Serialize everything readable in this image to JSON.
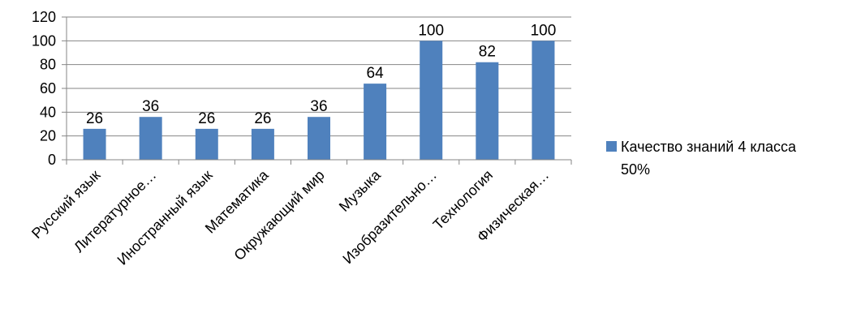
{
  "chart_data": {
    "type": "bar",
    "categories": [
      "Русский язык",
      "Литературное…",
      "Иностранный язык",
      "Математика",
      "Окружающий мир",
      "Музыка",
      "Изобразительно…",
      "Технология",
      "Физическая…"
    ],
    "series": [
      {
        "name": "Качество знаний 4 класса 50%",
        "values": [
          26,
          36,
          26,
          26,
          36,
          64,
          100,
          82,
          100
        ]
      }
    ],
    "data_labels": [
      "26",
      "36",
      "26",
      "26",
      "36",
      "64",
      "100",
      "82",
      "100"
    ],
    "y_ticks": [
      "0",
      "20",
      "40",
      "60",
      "80",
      "100",
      "120"
    ],
    "ylim": [
      0,
      120
    ],
    "grid": true,
    "legend": {
      "position": "right",
      "line1": "Качество знаний 4 класса",
      "line2": "50%"
    },
    "colors": {
      "bar": "#4F81BD",
      "grid": "#868686",
      "axis": "#868686"
    }
  }
}
